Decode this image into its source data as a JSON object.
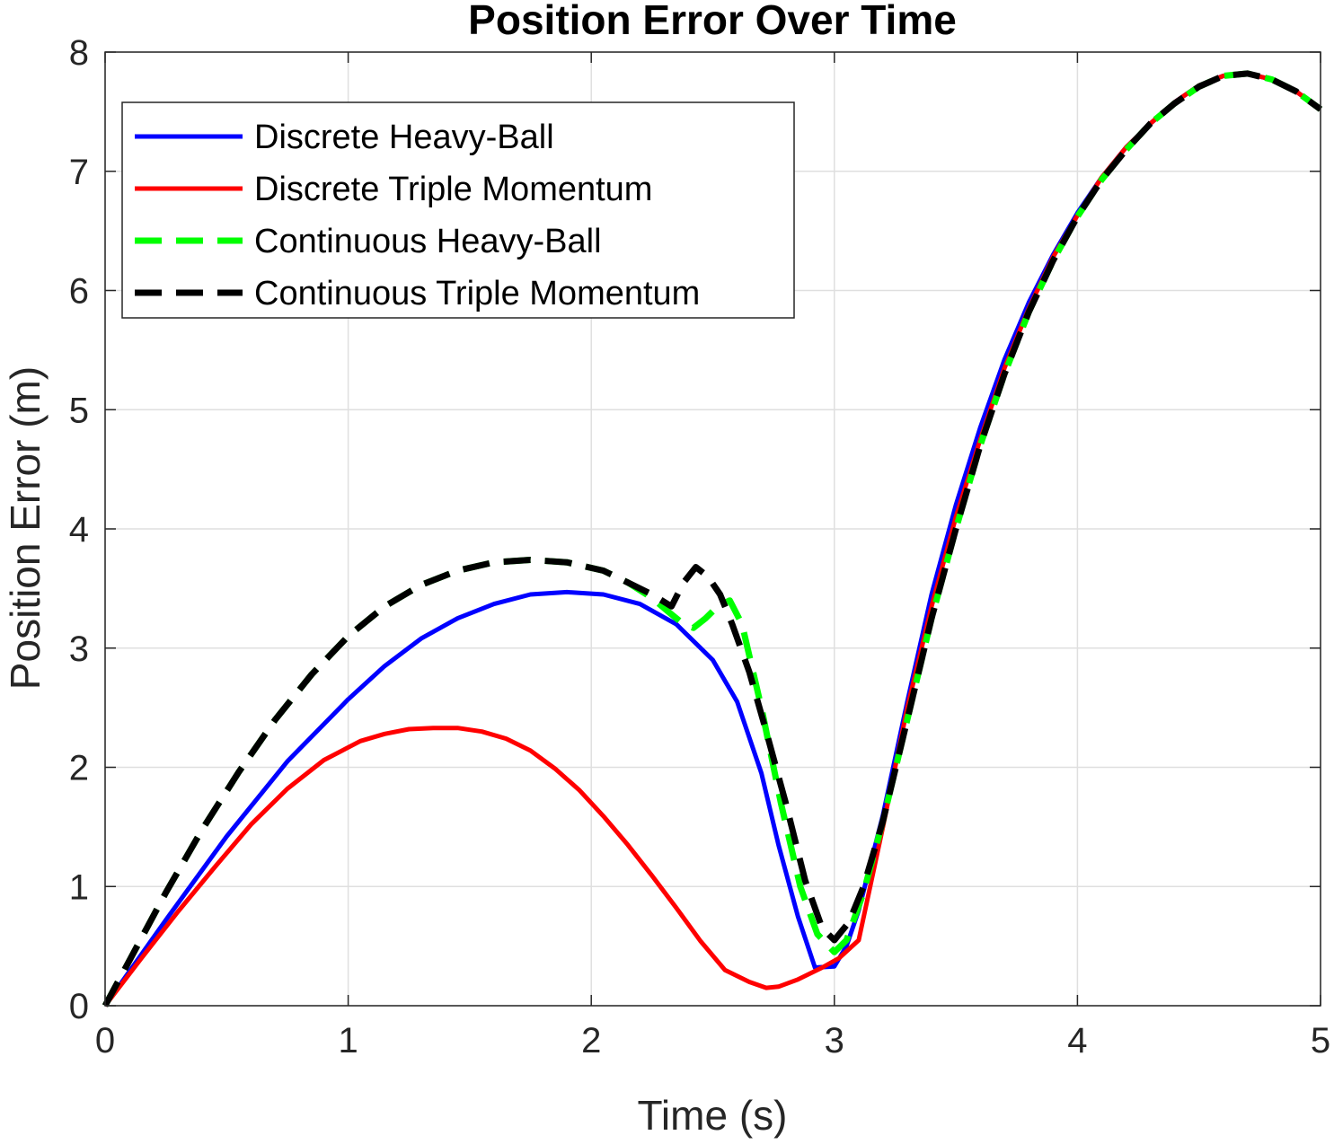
{
  "chart_data": {
    "type": "line",
    "title": "Position Error Over Time",
    "xlabel": "Time (s)",
    "ylabel": "Position Error (m)",
    "xlim": [
      0,
      5
    ],
    "ylim": [
      0,
      8
    ],
    "xticks": [
      "0",
      "1",
      "2",
      "3",
      "4",
      "5"
    ],
    "yticks": [
      "0",
      "1",
      "2",
      "3",
      "4",
      "5",
      "6",
      "7",
      "8"
    ],
    "grid": true,
    "legend_position": "top-left",
    "series": [
      {
        "name": "Discrete Heavy-Ball",
        "color": "#0000ff",
        "style": "solid",
        "x": [
          0,
          0.25,
          0.5,
          0.75,
          1.0,
          1.15,
          1.3,
          1.45,
          1.6,
          1.75,
          1.9,
          2.05,
          2.2,
          2.35,
          2.5,
          2.6,
          2.7,
          2.77,
          2.85,
          2.92,
          3.0,
          3.05,
          3.1,
          3.2,
          3.3,
          3.4,
          3.5,
          3.6,
          3.7,
          3.8,
          3.9,
          4.0,
          4.1,
          4.2,
          4.3,
          4.4,
          4.5,
          4.6,
          4.7,
          4.8,
          4.9,
          5.0
        ],
        "y": [
          0,
          0.72,
          1.42,
          2.05,
          2.57,
          2.85,
          3.08,
          3.25,
          3.37,
          3.45,
          3.47,
          3.45,
          3.37,
          3.2,
          2.9,
          2.55,
          1.95,
          1.35,
          0.75,
          0.32,
          0.33,
          0.5,
          0.8,
          1.6,
          2.55,
          3.45,
          4.2,
          4.85,
          5.42,
          5.9,
          6.3,
          6.65,
          6.95,
          7.2,
          7.4,
          7.58,
          7.72,
          7.8,
          7.82,
          7.77,
          7.67,
          7.52
        ]
      },
      {
        "name": "Discrete Triple Momentum",
        "color": "#ff0000",
        "style": "solid",
        "x": [
          0,
          0.15,
          0.3,
          0.45,
          0.6,
          0.75,
          0.9,
          1.05,
          1.15,
          1.25,
          1.35,
          1.45,
          1.55,
          1.65,
          1.75,
          1.85,
          1.95,
          2.05,
          2.15,
          2.25,
          2.35,
          2.45,
          2.55,
          2.65,
          2.72,
          2.77,
          2.85,
          2.95,
          3.02,
          3.1,
          3.2,
          3.3,
          3.4,
          3.5,
          3.6,
          3.7,
          3.8,
          3.9,
          4.0,
          4.1,
          4.2,
          4.3,
          4.4,
          4.5,
          4.6,
          4.7,
          4.8,
          4.9,
          5.0
        ],
        "y": [
          0,
          0.4,
          0.79,
          1.16,
          1.52,
          1.82,
          2.06,
          2.22,
          2.28,
          2.32,
          2.33,
          2.33,
          2.3,
          2.24,
          2.14,
          1.99,
          1.81,
          1.59,
          1.35,
          1.09,
          0.82,
          0.54,
          0.3,
          0.2,
          0.15,
          0.16,
          0.22,
          0.32,
          0.4,
          0.55,
          1.5,
          2.5,
          3.35,
          4.1,
          4.75,
          5.35,
          5.85,
          6.28,
          6.63,
          6.95,
          7.2,
          7.4,
          7.58,
          7.72,
          7.8,
          7.82,
          7.77,
          7.67,
          7.52
        ]
      },
      {
        "name": "Continuous Heavy-Ball",
        "color": "#00ff00",
        "style": "dashed",
        "x": [
          0,
          0.1,
          0.25,
          0.4,
          0.55,
          0.7,
          0.85,
          1.0,
          1.15,
          1.3,
          1.45,
          1.6,
          1.75,
          1.9,
          2.05,
          2.15,
          2.25,
          2.32,
          2.38,
          2.42,
          2.47,
          2.52,
          2.57,
          2.62,
          2.7,
          2.78,
          2.86,
          2.93,
          3.0,
          3.05,
          3.12,
          3.2,
          3.3,
          3.4,
          3.5,
          3.6,
          3.7,
          3.8,
          3.9,
          4.0,
          4.1,
          4.2,
          4.3,
          4.4,
          4.5,
          4.6,
          4.7,
          4.8,
          4.9,
          5.0
        ],
        "y": [
          0,
          0.38,
          0.95,
          1.48,
          1.96,
          2.4,
          2.78,
          3.1,
          3.35,
          3.53,
          3.65,
          3.72,
          3.74,
          3.72,
          3.65,
          3.55,
          3.42,
          3.3,
          3.2,
          3.17,
          3.25,
          3.35,
          3.4,
          3.2,
          2.5,
          1.7,
          1.0,
          0.6,
          0.45,
          0.55,
          0.95,
          1.55,
          2.4,
          3.25,
          4.0,
          4.7,
          5.3,
          5.82,
          6.25,
          6.62,
          6.93,
          7.18,
          7.4,
          7.57,
          7.71,
          7.8,
          7.82,
          7.77,
          7.67,
          7.52
        ]
      },
      {
        "name": "Continuous Triple Momentum",
        "color": "#000000",
        "style": "dashed",
        "x": [
          0,
          0.1,
          0.25,
          0.4,
          0.55,
          0.7,
          0.85,
          1.0,
          1.15,
          1.3,
          1.45,
          1.6,
          1.75,
          1.9,
          2.05,
          2.15,
          2.25,
          2.33,
          2.38,
          2.43,
          2.48,
          2.53,
          2.58,
          2.65,
          2.72,
          2.8,
          2.88,
          2.95,
          3.0,
          3.06,
          3.12,
          3.2,
          3.3,
          3.4,
          3.5,
          3.6,
          3.7,
          3.8,
          3.9,
          4.0,
          4.1,
          4.2,
          4.3,
          4.4,
          4.5,
          4.6,
          4.7,
          4.8,
          4.9,
          5.0
        ],
        "y": [
          0,
          0.38,
          0.95,
          1.48,
          1.96,
          2.4,
          2.78,
          3.1,
          3.35,
          3.53,
          3.65,
          3.72,
          3.74,
          3.72,
          3.65,
          3.55,
          3.45,
          3.35,
          3.55,
          3.68,
          3.6,
          3.45,
          3.2,
          2.8,
          2.3,
          1.7,
          1.05,
          0.65,
          0.55,
          0.7,
          1.0,
          1.55,
          2.4,
          3.25,
          4.0,
          4.7,
          5.3,
          5.82,
          6.25,
          6.62,
          6.93,
          7.18,
          7.4,
          7.57,
          7.71,
          7.8,
          7.82,
          7.77,
          7.67,
          7.52
        ]
      }
    ]
  }
}
